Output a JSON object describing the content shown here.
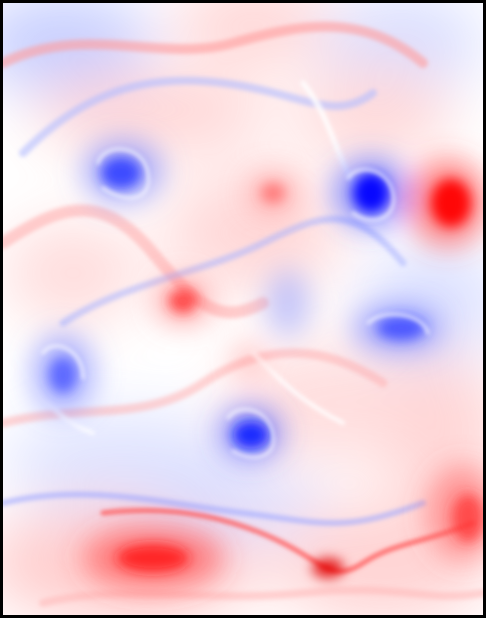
{
  "image": {
    "kind": "vorticity-field",
    "colormap": {
      "negative": "#0000ff",
      "zero": "#ffffff",
      "positive": "#ff0000"
    },
    "border_color": "#000000",
    "vortices": [
      {
        "sign": "negative",
        "strength": 0.85
      },
      {
        "sign": "negative",
        "strength": 1.0
      },
      {
        "sign": "positive",
        "strength": 1.0
      },
      {
        "sign": "positive",
        "strength": 0.55
      },
      {
        "sign": "positive",
        "strength": 0.6
      },
      {
        "sign": "negative",
        "strength": 0.6
      },
      {
        "sign": "negative",
        "strength": 0.7
      },
      {
        "sign": "negative",
        "strength": 0.9
      },
      {
        "sign": "positive",
        "strength": 0.9
      },
      {
        "sign": "positive",
        "strength": 0.8
      },
      {
        "sign": "positive",
        "strength": 0.5
      },
      {
        "sign": "negative",
        "strength": 0.45
      }
    ]
  }
}
